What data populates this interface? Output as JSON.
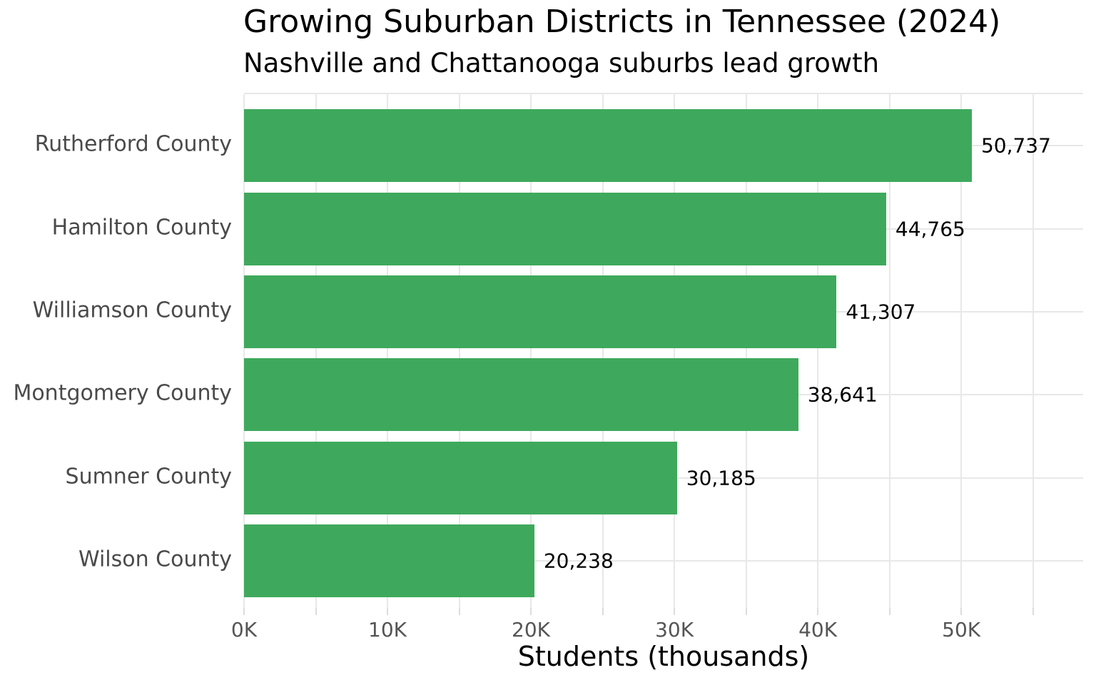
{
  "chart_data": {
    "type": "bar",
    "orientation": "horizontal",
    "title": "Growing Suburban Districts in Tennessee (2024)",
    "subtitle": "Nashville and Chattanooga suburbs lead growth",
    "xlabel": "Students (thousands)",
    "categories": [
      "Rutherford County",
      "Hamilton County",
      "Williamson County",
      "Montgomery County",
      "Sumner County",
      "Wilson County"
    ],
    "values": [
      50737,
      44765,
      41307,
      38641,
      30185,
      20238
    ],
    "value_labels": [
      "50,737",
      "44,765",
      "41,307",
      "38,641",
      "30,185",
      "20,238"
    ],
    "xlim": [
      0,
      58500
    ],
    "grid_interval": 5000,
    "x_major_ticks": [
      {
        "value": 0,
        "label": "0K"
      },
      {
        "value": 10000,
        "label": "10K"
      },
      {
        "value": 20000,
        "label": "20K"
      },
      {
        "value": 30000,
        "label": "30K"
      },
      {
        "value": 40000,
        "label": "40K"
      },
      {
        "value": 50000,
        "label": "50K"
      }
    ],
    "grid": true,
    "legend": null
  },
  "style": {
    "bar_color": "#3ea95c",
    "grid_color": "#e8e8e8",
    "axis_tick_color": "#dcdcdc",
    "category_label_color": "#4a4a4a",
    "tick_label_color": "#555555",
    "text_color": "#000000",
    "background_color": "#ffffff"
  }
}
